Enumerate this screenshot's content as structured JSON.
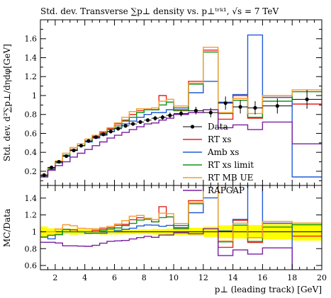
{
  "chart_data": {
    "type": "line",
    "title": "Std. dev. Transverse ∑p⊥ density vs. p⊥ᵗʳᵏ¹, √s = 7 TeV",
    "ylabel_top": "Std. dev. d²∑p⊥/dηdφ[GeV]",
    "ylabel_bottom": "MC/Data",
    "xlabel": "p⊥ (leading track) [GeV]",
    "xlim": [
      1,
      20
    ],
    "ylim_top": [
      0.05,
      1.8
    ],
    "ylim_bottom": [
      0.55,
      1.55
    ],
    "xticks": [
      2,
      4,
      6,
      8,
      10,
      12,
      14,
      16,
      18,
      20
    ],
    "xtick_labels": [
      "2",
      "4",
      "6",
      "8",
      "10",
      "12",
      "14",
      "16",
      "18",
      "20"
    ],
    "yticks_top": [
      0.2,
      0.4,
      0.6,
      0.8,
      1.0,
      1.2,
      1.4,
      1.6
    ],
    "ytick_labels_top": [
      "0.2",
      "0.4",
      "0.6",
      "0.8",
      "1",
      "1.2",
      "1.4",
      "1.6"
    ],
    "yticks_bottom": [
      0.6,
      0.8,
      1.0,
      1.2,
      1.4
    ],
    "ytick_labels_bottom": [
      "0.6",
      "0.8",
      "1",
      "1.2",
      "1.4"
    ],
    "bin_edges": [
      1.0,
      1.5,
      2.0,
      2.5,
      3.0,
      3.5,
      4.0,
      4.5,
      5.0,
      5.5,
      6.0,
      6.5,
      7.0,
      7.5,
      8.0,
      8.5,
      9.0,
      9.5,
      10.0,
      11.0,
      12.0,
      13.0,
      14.0,
      15.0,
      16.0,
      18.0,
      20.0
    ],
    "data": {
      "name": "Data",
      "x": [
        1.25,
        1.75,
        2.25,
        2.75,
        3.25,
        3.75,
        4.25,
        4.75,
        5.25,
        5.75,
        6.25,
        6.75,
        7.25,
        7.75,
        8.25,
        8.75,
        9.25,
        9.75,
        10.5,
        11.5,
        12.5,
        13.5,
        14.5,
        15.5,
        17.0,
        19.0
      ],
      "y": [
        0.16,
        0.24,
        0.3,
        0.36,
        0.42,
        0.47,
        0.52,
        0.56,
        0.59,
        0.62,
        0.65,
        0.68,
        0.7,
        0.72,
        0.74,
        0.76,
        0.77,
        0.79,
        0.81,
        0.84,
        0.82,
        0.92,
        0.88,
        0.87,
        0.89,
        0.96
      ],
      "yerr": [
        0.01,
        0.01,
        0.01,
        0.01,
        0.015,
        0.015,
        0.015,
        0.015,
        0.02,
        0.02,
        0.02,
        0.02,
        0.02,
        0.02,
        0.02,
        0.025,
        0.025,
        0.03,
        0.03,
        0.04,
        0.05,
        0.07,
        0.07,
        0.07,
        0.08,
        0.1
      ]
    },
    "series": [
      {
        "name": "RT xs",
        "color": "#e8211b",
        "values": [
          0.15,
          0.23,
          0.29,
          0.37,
          0.43,
          0.47,
          0.52,
          0.57,
          0.61,
          0.65,
          0.7,
          0.74,
          0.8,
          0.84,
          0.86,
          0.85,
          1.0,
          0.93,
          0.85,
          1.15,
          1.48,
          0.75,
          1.0,
          0.76,
          0.98,
          0.91
        ]
      },
      {
        "name": "Amb xs",
        "color": "#1f5bd6",
        "values": [
          0.15,
          0.22,
          0.29,
          0.36,
          0.42,
          0.47,
          0.51,
          0.55,
          0.58,
          0.62,
          0.66,
          0.7,
          0.73,
          0.77,
          0.8,
          0.82,
          0.82,
          0.85,
          0.87,
          1.03,
          1.15,
          0.93,
          1.01,
          1.64,
          0.98,
          0.14
        ]
      },
      {
        "name": "RT xs limit",
        "color": "#159118",
        "values": [
          0.15,
          0.23,
          0.29,
          0.37,
          0.42,
          0.47,
          0.52,
          0.56,
          0.6,
          0.64,
          0.68,
          0.73,
          0.77,
          0.82,
          0.85,
          0.85,
          0.9,
          0.93,
          0.84,
          1.12,
          1.46,
          0.81,
          0.95,
          0.77,
          0.94,
          1.04
        ]
      },
      {
        "name": "RT MB UE",
        "color": "#f39c2c",
        "values": [
          0.16,
          0.24,
          0.31,
          0.39,
          0.45,
          0.49,
          0.54,
          0.58,
          0.62,
          0.66,
          0.71,
          0.77,
          0.83,
          0.86,
          0.86,
          0.87,
          0.94,
          0.96,
          0.89,
          1.13,
          1.51,
          0.82,
          0.97,
          0.81,
          1.0,
          1.06
        ]
      },
      {
        "name": "RAPGAP",
        "color": "#7a1fa2",
        "values": [
          0.14,
          0.21,
          0.26,
          0.3,
          0.35,
          0.39,
          0.43,
          0.47,
          0.51,
          0.55,
          0.58,
          0.61,
          0.64,
          0.67,
          0.7,
          0.71,
          0.74,
          0.76,
          0.8,
          0.82,
          0.85,
          0.66,
          0.69,
          0.64,
          0.72,
          0.49
        ]
      }
    ],
    "band": {
      "color": "#ffff00"
    },
    "legend_placement": "right"
  }
}
